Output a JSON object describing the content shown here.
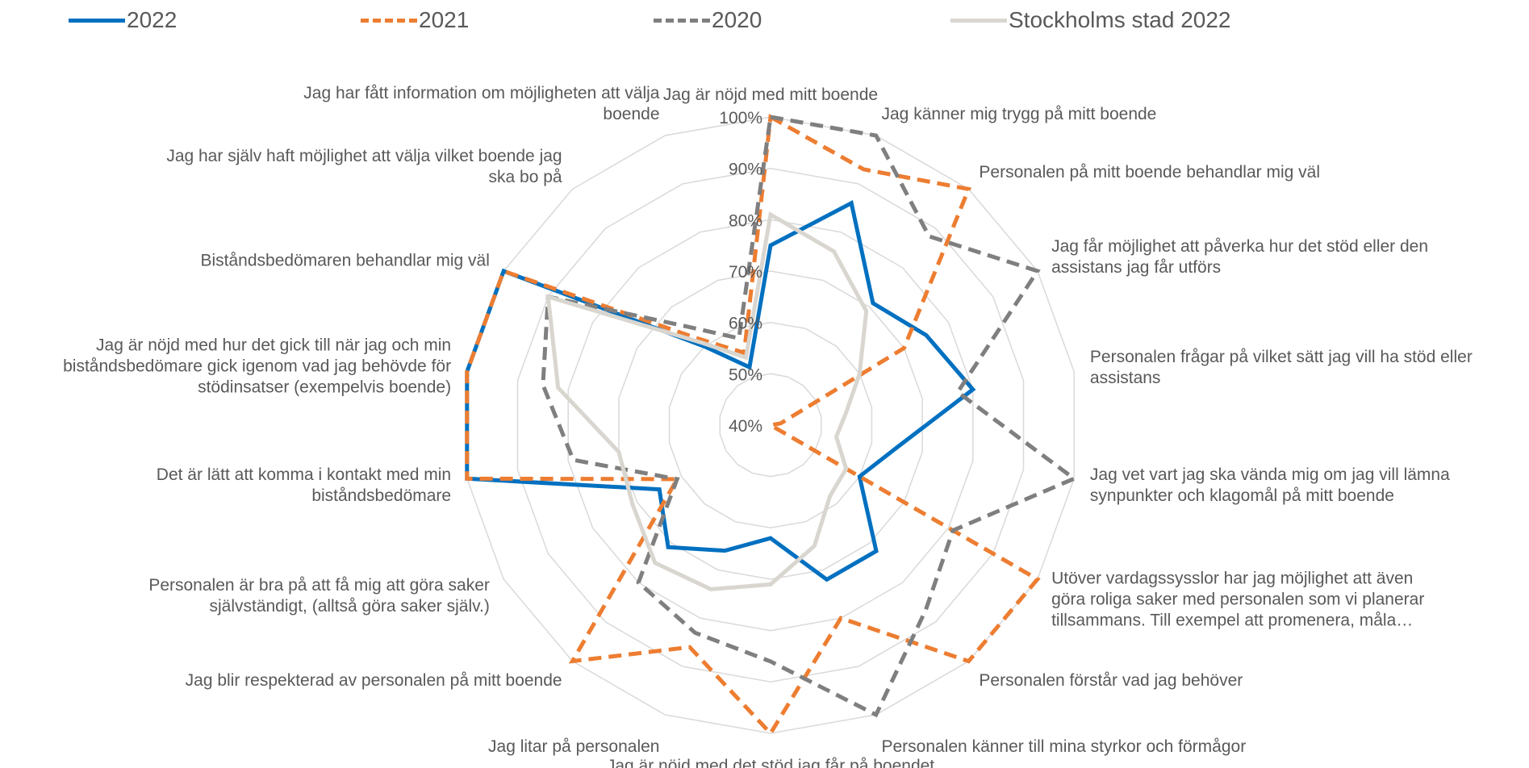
{
  "chart_data": {
    "type": "radar",
    "title": "",
    "range": [
      40,
      100
    ],
    "tick_values": [
      40,
      50,
      60,
      70,
      80,
      90,
      100
    ],
    "tick_labels": [
      "40%",
      "50%",
      "60%",
      "70%",
      "80%",
      "90%",
      "100%"
    ],
    "legend_position": "top",
    "categories": [
      [
        "Jag är nöjd med mitt boende"
      ],
      [
        "Jag känner mig trygg på mitt boende"
      ],
      [
        "Personalen på mitt boende behandlar mig väl"
      ],
      [
        "Jag får möjlighet att påverka hur det stöd eller den",
        "assistans jag får utförs"
      ],
      [
        "Personalen frågar på vilket sätt jag vill ha stöd eller",
        "assistans"
      ],
      [
        "Jag vet vart jag ska vända mig om jag vill lämna",
        "synpunkter och klagomål på mitt boende"
      ],
      [
        "Utöver vardagssysslor har jag möjlighet att även",
        "göra roliga saker med personalen som vi planerar",
        "tillsammans. Till exempel att promenera, måla…"
      ],
      [
        "Personalen förstår vad jag behöver"
      ],
      [
        "Personalen känner till mina styrkor och förmågor"
      ],
      [
        "Jag är nöjd med det stöd jag får på boendet"
      ],
      [
        "Jag litar på personalen"
      ],
      [
        "Jag blir respekterad av personalen på mitt boende"
      ],
      [
        "Personalen är bra på att få mig att göra saker",
        "självständigt, (alltså göra saker själv.)"
      ],
      [
        "Det är lätt att komma i kontakt med min",
        "biståndsbedömare"
      ],
      [
        "Jag är nöjd med hur det gick till när jag och min",
        "biståndsbedömare gick igenom vad jag behövde för",
        "stödinsatser (exempelvis boende)"
      ],
      [
        "Biståndsbedömaren behandlar mig väl"
      ],
      [
        "Jag har själv haft möjlighet att välja vilket boende jag",
        "ska bo på"
      ],
      [
        "Jag har fått information om möjligheten att välja",
        "boende"
      ]
    ],
    "series": [
      {
        "name": "2022",
        "color": "#0070C0",
        "dash": "solid",
        "values": [
          75,
          86,
          71,
          75,
          80,
          65,
          60,
          72,
          72,
          62,
          66,
          71,
          65,
          100,
          100,
          100,
          60,
          52
        ]
      },
      {
        "name": "2021",
        "color": "#ED7D31",
        "dash": "dashed",
        "values": [
          100,
          93,
          100,
          70,
          42,
          40,
          100,
          100,
          80,
          100,
          86,
          100,
          61,
          100,
          100,
          100,
          62,
          55
        ]
      },
      {
        "name": "2020",
        "color": "#7F7F7F",
        "dash": "dashed",
        "values": [
          100,
          100,
          88,
          100,
          77,
          100,
          81,
          87,
          100,
          86,
          83,
          80,
          61,
          79,
          85,
          90,
          65,
          58
        ]
      },
      {
        "name": "Stockholms stad 2022",
        "color": "#D9D6D0",
        "dash": "solid",
        "values": [
          81,
          76,
          69,
          60,
          55,
          53,
          57,
          58,
          65,
          71,
          74,
          75,
          71,
          70,
          82,
          90,
          61,
          54
        ]
      }
    ]
  }
}
